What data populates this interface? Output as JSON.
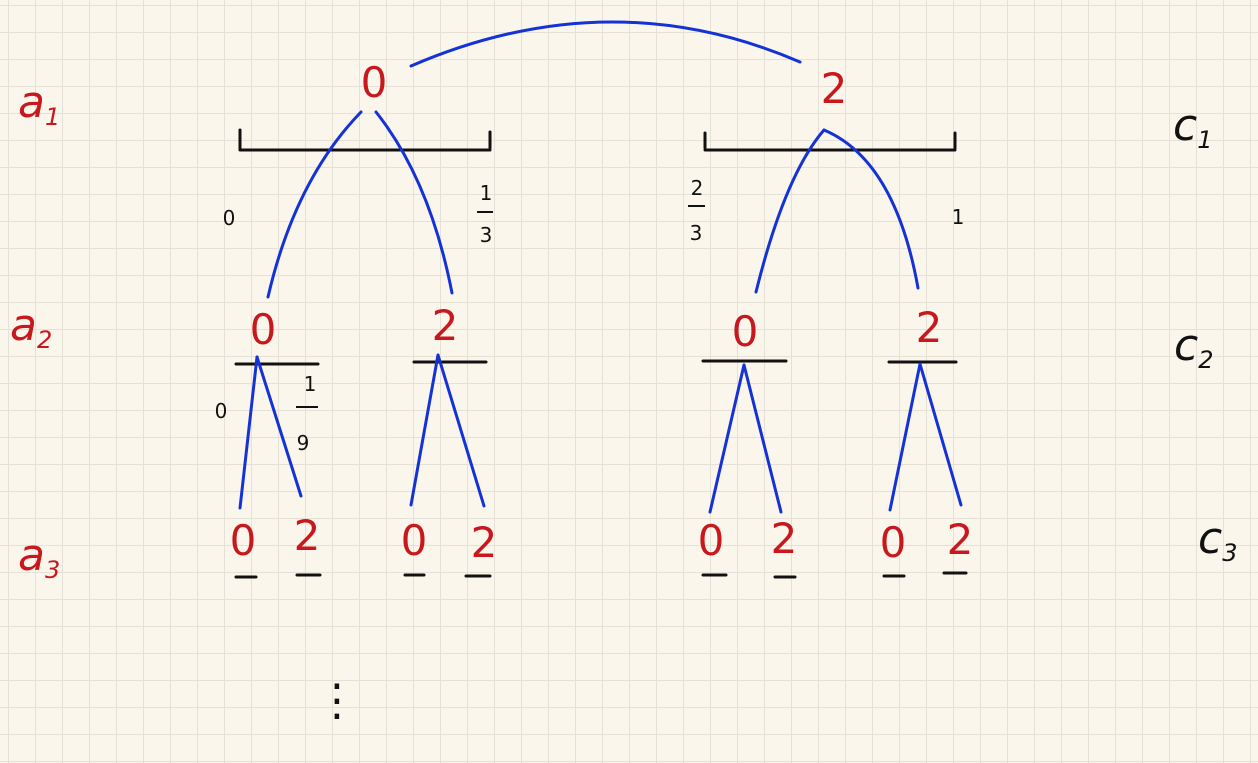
{
  "colors": {
    "digit": "#c8181e",
    "branch": "#1432d6",
    "ink": "#111111",
    "background": "#faf6ec"
  },
  "left_labels": [
    "a",
    "a",
    "a"
  ],
  "left_subscripts": [
    "1",
    "2",
    "3"
  ],
  "right_labels": [
    "c",
    "c",
    "c"
  ],
  "right_subscripts": [
    "1",
    "2",
    "3"
  ],
  "digits": {
    "level1": [
      "0",
      "2"
    ],
    "level2": [
      "0",
      "2",
      "0",
      "2"
    ],
    "level3": [
      "0",
      "2",
      "0",
      "2",
      "0",
      "2",
      "0",
      "2"
    ]
  },
  "interval_endpoints": {
    "first_left": "0",
    "first_right_num": "1",
    "first_right_den": "3",
    "second_left_num": "2",
    "second_left_den": "3",
    "second_right": "1",
    "sub_left": "0",
    "sub_right_num": "1",
    "sub_right_den": "9"
  },
  "continuation": "⋮"
}
